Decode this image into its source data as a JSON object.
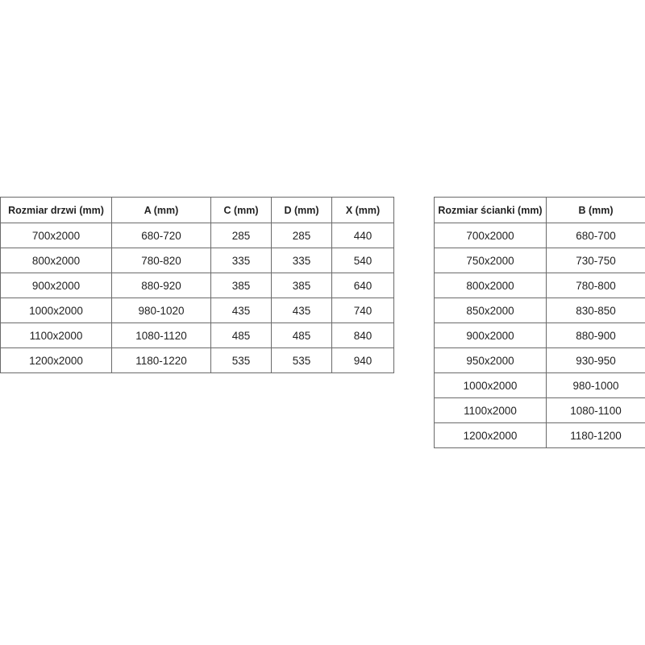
{
  "door_table": {
    "headers": [
      "Rozmiar drzwi (mm)",
      "A (mm)",
      "C (mm)",
      "D (mm)",
      "X (mm)"
    ],
    "rows": [
      [
        "700x2000",
        "680-720",
        "285",
        "285",
        "440"
      ],
      [
        "800x2000",
        "780-820",
        "335",
        "335",
        "540"
      ],
      [
        "900x2000",
        "880-920",
        "385",
        "385",
        "640"
      ],
      [
        "1000x2000",
        "980-1020",
        "435",
        "435",
        "740"
      ],
      [
        "1100x2000",
        "1080-1120",
        "485",
        "485",
        "840"
      ],
      [
        "1200x2000",
        "1180-1220",
        "535",
        "535",
        "940"
      ]
    ]
  },
  "wall_table": {
    "headers": [
      "Rozmiar ścianki (mm)",
      "B (mm)"
    ],
    "rows": [
      [
        "700x2000",
        "680-700"
      ],
      [
        "750x2000",
        "730-750"
      ],
      [
        "800x2000",
        "780-800"
      ],
      [
        "850x2000",
        "830-850"
      ],
      [
        "900x2000",
        "880-900"
      ],
      [
        "950x2000",
        "930-950"
      ],
      [
        "1000x2000",
        "980-1000"
      ],
      [
        "1100x2000",
        "1080-1100"
      ],
      [
        "1200x2000",
        "1180-1200"
      ]
    ]
  }
}
